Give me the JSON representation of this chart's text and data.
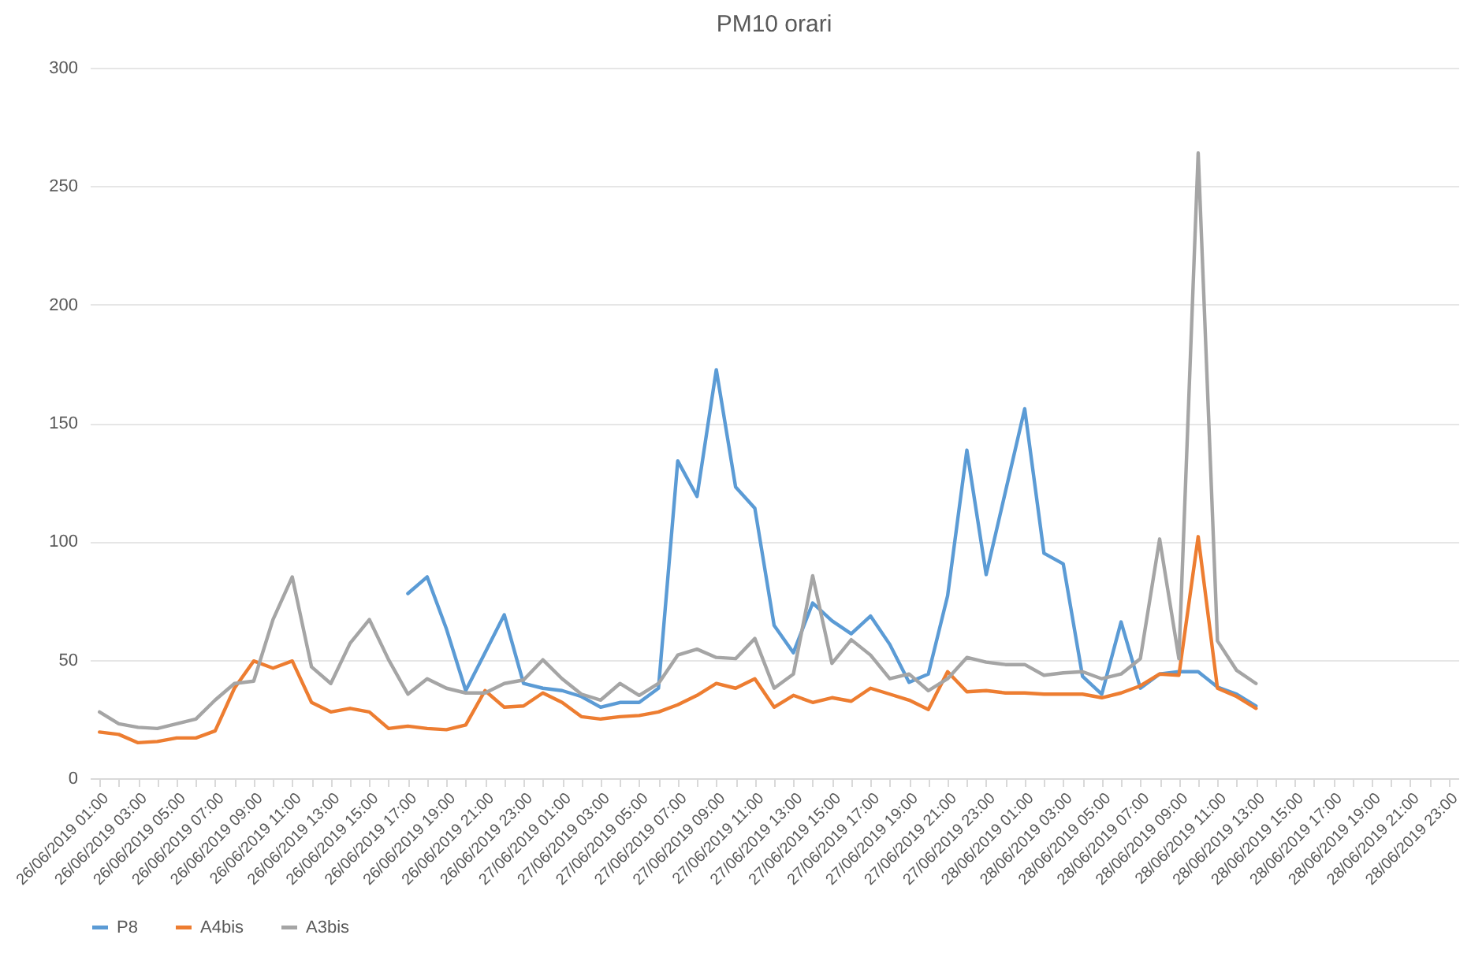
{
  "chart_data": {
    "type": "line",
    "title": "PM10 orari",
    "categories": [
      "26/06/2019 01:00",
      null,
      "26/06/2019 03:00",
      null,
      "26/06/2019 05:00",
      null,
      "26/06/2019 07:00",
      null,
      "26/06/2019 09:00",
      null,
      "26/06/2019 11:00",
      null,
      "26/06/2019 13:00",
      null,
      "26/06/2019 15:00",
      null,
      "26/06/2019 17:00",
      null,
      "26/06/2019 19:00",
      null,
      "26/06/2019 21:00",
      null,
      "26/06/2019 23:00",
      null,
      "27/06/2019 01:00",
      null,
      "27/06/2019 03:00",
      null,
      "27/06/2019 05:00",
      null,
      "27/06/2019 07:00",
      null,
      "27/06/2019 09:00",
      null,
      "27/06/2019 11:00",
      null,
      "27/06/2019 13:00",
      null,
      "27/06/2019 15:00",
      null,
      "27/06/2019 17:00",
      null,
      "27/06/2019 19:00",
      null,
      "27/06/2019 21:00",
      null,
      "27/06/2019 23:00",
      null,
      "28/06/2019 01:00",
      null,
      "28/06/2019 03:00",
      null,
      "28/06/2019 05:00",
      null,
      "28/06/2019 07:00",
      null,
      "28/06/2019 09:00",
      null,
      "28/06/2019 11:00",
      null,
      "28/06/2019 13:00",
      null,
      "28/06/2019 15:00",
      null,
      "28/06/2019 17:00",
      null,
      "28/06/2019 19:00",
      null,
      "28/06/2019 21:00",
      null,
      "28/06/2019 23:00"
    ],
    "series": [
      {
        "name": "P8",
        "color": "#5b9bd5",
        "values": [
          null,
          null,
          null,
          null,
          null,
          null,
          null,
          null,
          null,
          null,
          null,
          null,
          null,
          null,
          null,
          null,
          78,
          85,
          63,
          37,
          53,
          69,
          40,
          38,
          37,
          34.5,
          30,
          32,
          32,
          38,
          134,
          119,
          172.5,
          123,
          114,
          64.5,
          53,
          74,
          66.5,
          61,
          68.5,
          56.5,
          40.5,
          44,
          77,
          138.5,
          86,
          121,
          156,
          95,
          90.5,
          43,
          35.5,
          66,
          38,
          44,
          45,
          45,
          38.5,
          35.5,
          30.5,
          null,
          null,
          null,
          null,
          null,
          null,
          null,
          null,
          null,
          null
        ]
      },
      {
        "name": "A4bis",
        "color": "#ed7d31",
        "values": [
          19.5,
          18.5,
          15,
          15.5,
          17,
          17,
          20,
          38,
          49.5,
          46.5,
          49.5,
          32,
          28,
          29.5,
          28,
          21,
          22,
          21,
          20.5,
          22.5,
          37,
          30,
          30.5,
          36,
          32,
          26,
          25,
          26,
          26.5,
          28,
          31,
          35,
          40,
          38,
          42,
          30,
          35,
          32,
          34,
          32.5,
          38,
          35.5,
          33,
          29,
          45,
          36.5,
          37,
          36,
          36,
          35.5,
          35.5,
          35.5,
          34,
          36,
          39,
          44,
          43.5,
          102,
          38,
          34.5,
          29.5,
          null,
          null,
          null,
          null,
          null,
          null,
          null,
          null,
          null,
          null
        ]
      },
      {
        "name": "A3bis",
        "color": "#a5a5a5",
        "values": [
          28,
          23,
          21.5,
          21,
          23,
          25,
          33,
          40,
          41,
          67,
          85,
          47,
          40,
          57,
          67,
          50,
          35.5,
          42,
          38,
          36,
          36,
          40,
          41.5,
          50,
          42,
          35.5,
          33,
          40,
          35,
          40,
          52,
          54.5,
          51,
          50.5,
          59,
          38,
          44,
          85.5,
          48.5,
          58.5,
          52,
          42,
          44,
          37,
          42,
          51,
          49,
          48,
          48,
          43.5,
          44.5,
          45,
          42,
          44,
          50.5,
          101,
          50.5,
          264,
          58,
          45.5,
          40,
          null,
          null,
          null,
          null,
          null,
          null,
          null,
          null,
          null,
          null
        ]
      }
    ],
    "ylim": [
      0,
      300
    ],
    "yticks": [
      0,
      50,
      100,
      150,
      200,
      250,
      300
    ],
    "grid": "y",
    "legend": "bottom",
    "marker": "none",
    "line_style": "solid"
  }
}
